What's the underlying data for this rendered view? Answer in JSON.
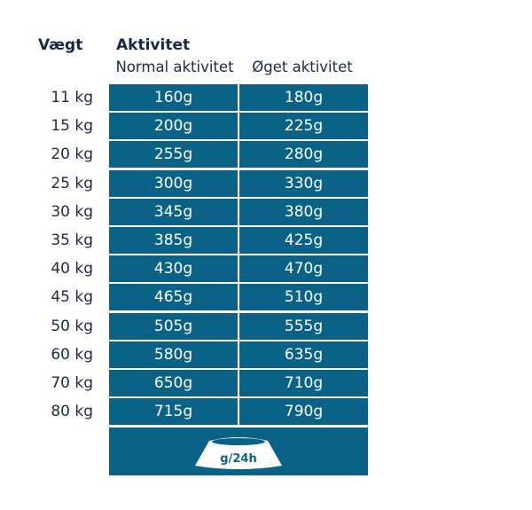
{
  "header": {
    "weight": "Vægt",
    "activity": "Aktivitet",
    "normal": "Normal aktivitet",
    "increased": "Øget aktivitet"
  },
  "rows": [
    {
      "weight": "11 kg",
      "normal": "160g",
      "increased": "180g"
    },
    {
      "weight": "15 kg",
      "normal": "200g",
      "increased": "225g"
    },
    {
      "weight": "20 kg",
      "normal": "255g",
      "increased": "280g"
    },
    {
      "weight": "25 kg",
      "normal": "300g",
      "increased": "330g"
    },
    {
      "weight": "30 kg",
      "normal": "345g",
      "increased": "380g"
    },
    {
      "weight": "35 kg",
      "normal": "385g",
      "increased": "425g"
    },
    {
      "weight": "40 kg",
      "normal": "430g",
      "increased": "470g"
    },
    {
      "weight": "45 kg",
      "normal": "465g",
      "increased": "510g"
    },
    {
      "weight": "50 kg",
      "normal": "505g",
      "increased": "555g"
    },
    {
      "weight": "60 kg",
      "normal": "580g",
      "increased": "635g"
    },
    {
      "weight": "70 kg",
      "normal": "650g",
      "increased": "710g"
    },
    {
      "weight": "80 kg",
      "normal": "715g",
      "increased": "790g"
    }
  ],
  "footer": {
    "unit": "g/24h",
    "icon": "food-bowl-icon"
  },
  "colors": {
    "cell": "#0a6386",
    "text": "#14284b"
  }
}
